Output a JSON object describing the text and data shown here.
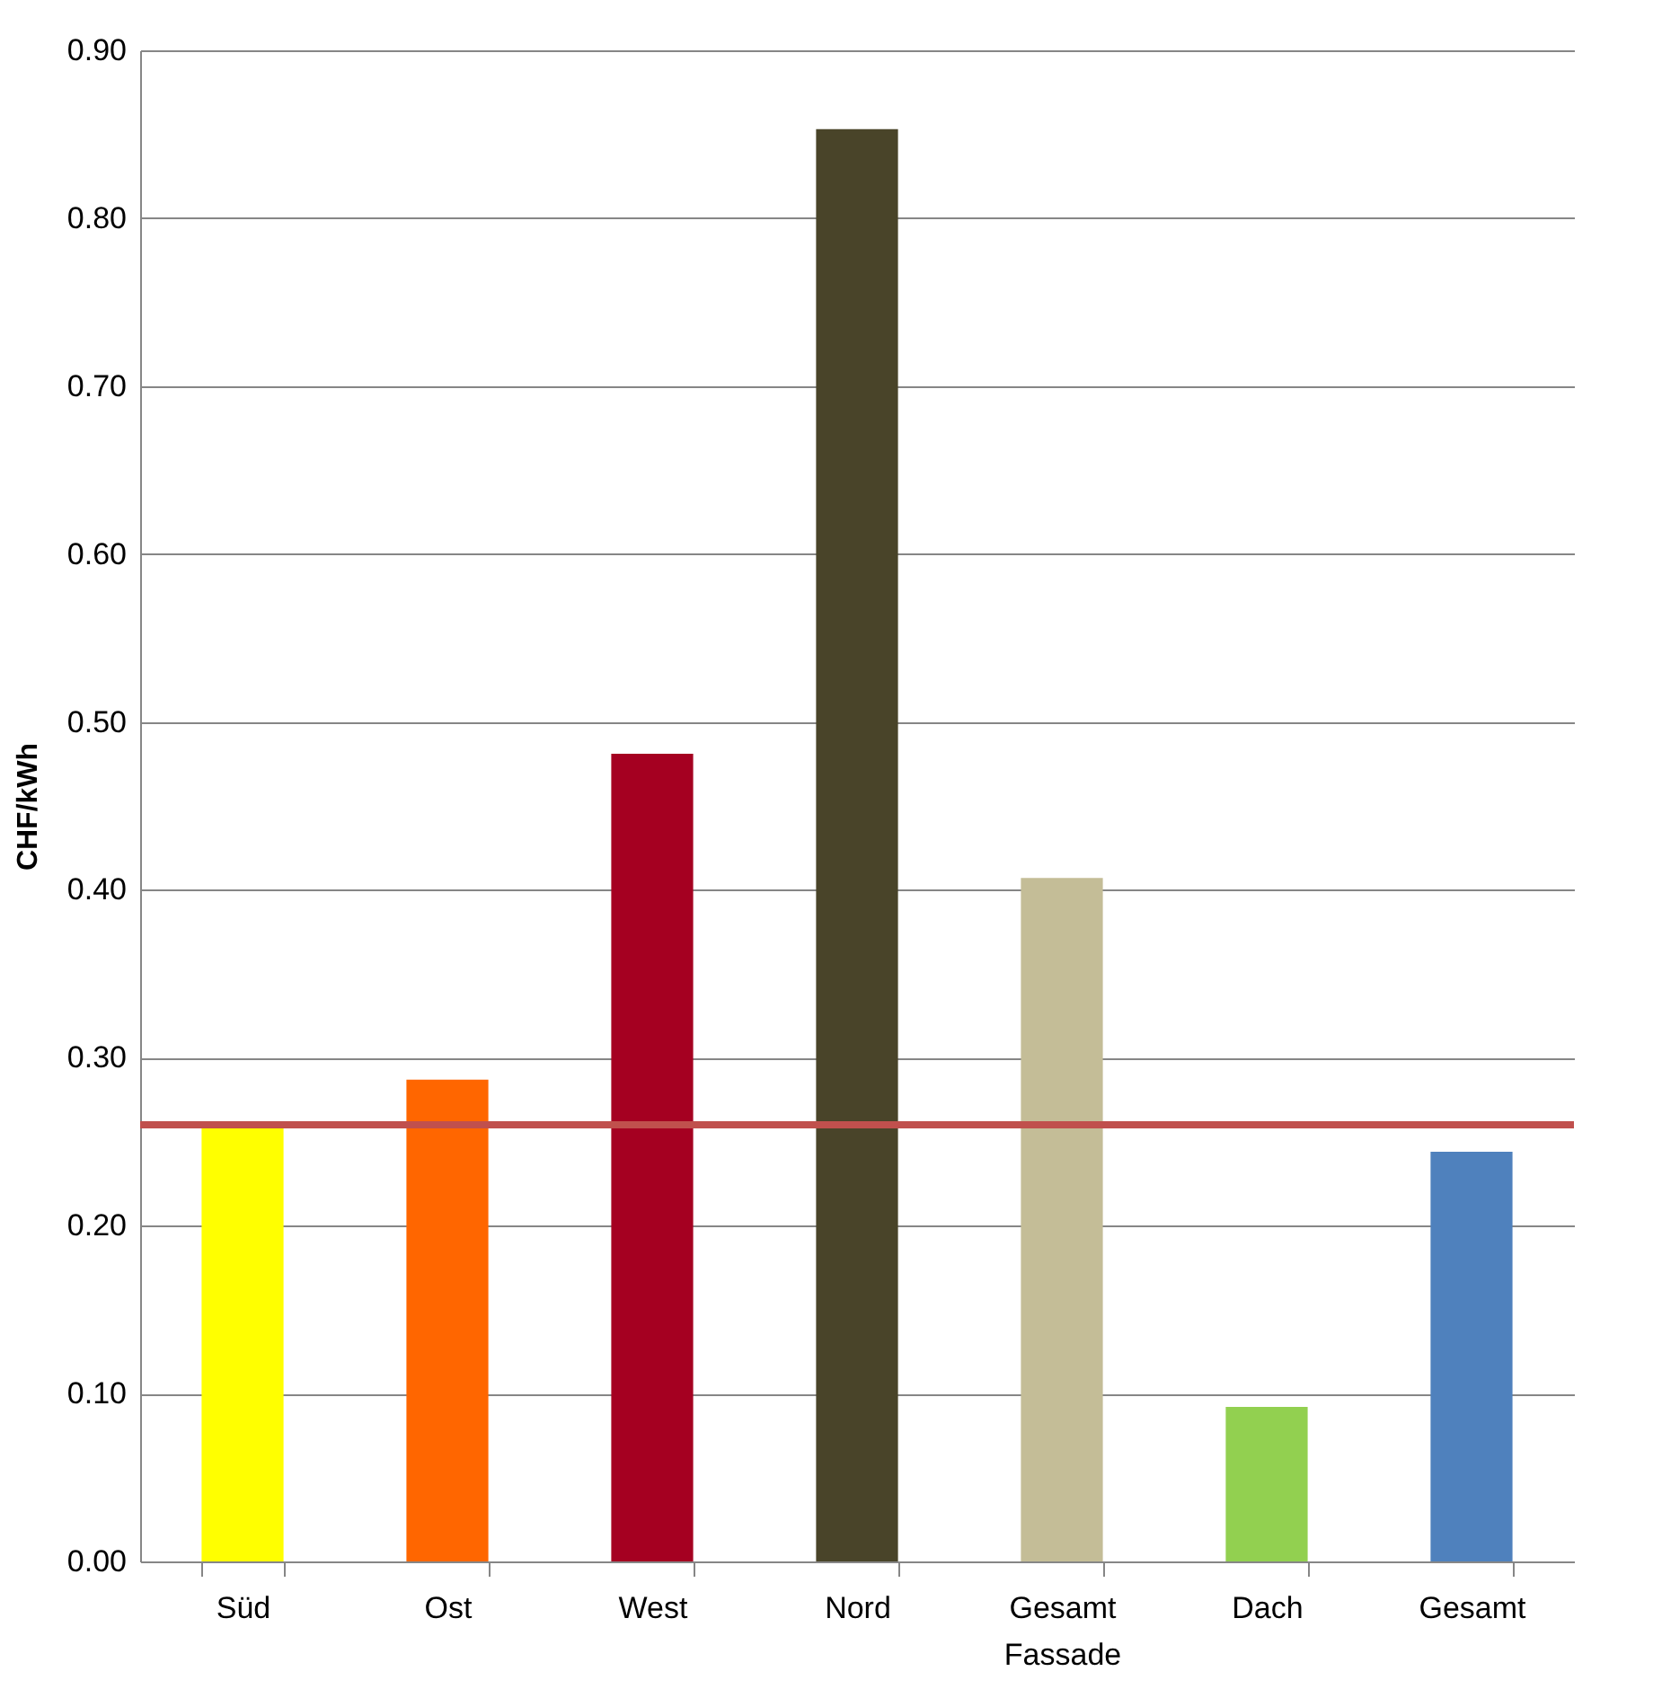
{
  "chart_data": {
    "type": "bar",
    "ylabel": "CHF/kWh",
    "categories": [
      "Süd",
      "Ost",
      "West",
      "Nord",
      "Gesamt Fassade",
      "Dach",
      "Gesamt"
    ],
    "values": [
      0.26,
      0.287,
      0.481,
      0.853,
      0.407,
      0.092,
      0.244
    ],
    "colors": [
      "#ffff00",
      "#ff6600",
      "#a50021",
      "#494429",
      "#c4bd97",
      "#92d050",
      "#4f81bd"
    ],
    "ylim": [
      0,
      0.9
    ],
    "yticks": [
      {
        "value": 0,
        "label": "0.00"
      },
      {
        "value": 0.1,
        "label": "0.10"
      },
      {
        "value": 0.2,
        "label": "0.20"
      },
      {
        "value": 0.3,
        "label": "0.30"
      },
      {
        "value": 0.4,
        "label": "0.40"
      },
      {
        "value": 0.5,
        "label": "0.50"
      },
      {
        "value": 0.6,
        "label": "0.60"
      },
      {
        "value": 0.7,
        "label": "0.70"
      },
      {
        "value": 0.8,
        "label": "0.80"
      },
      {
        "value": 0.9,
        "label": "0.90"
      }
    ],
    "grid": "y",
    "ref_lines": [
      {
        "axis": "y",
        "value": 0.26,
        "color": "#c0504d"
      }
    ]
  }
}
